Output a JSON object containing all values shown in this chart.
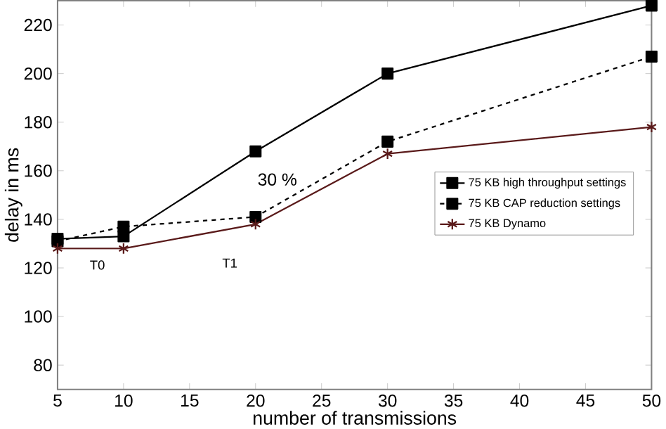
{
  "chart_data": {
    "type": "line",
    "xlabel": "number of transmissions",
    "ylabel": "delay in ms",
    "x": [
      5,
      10,
      20,
      30,
      50
    ],
    "series": [
      {
        "name": "75 KB high throughput settings",
        "color": "#000000",
        "marker": "square",
        "line_style": "solid",
        "values": [
          132,
          133,
          168,
          200,
          228
        ]
      },
      {
        "name": "75 KB CAP reduction settings",
        "color": "#000000",
        "marker": "square",
        "line_style": "dashed",
        "values": [
          131,
          137,
          141,
          172,
          207
        ]
      },
      {
        "name": "75 KB Dynamo",
        "color": "#5a1a1a",
        "marker": "cross",
        "line_style": "solid",
        "values": [
          128,
          128,
          138,
          167,
          178
        ]
      }
    ],
    "annotations": [
      "T0",
      "T1",
      "30 %"
    ],
    "xlim": [
      5,
      50
    ],
    "ylim": [
      70,
      230
    ],
    "xticks": [
      5,
      10,
      15,
      20,
      25,
      30,
      35,
      40,
      45,
      50
    ],
    "yticks": [
      80,
      100,
      120,
      140,
      160,
      180,
      200,
      220
    ],
    "grid": false,
    "legend": "right"
  }
}
